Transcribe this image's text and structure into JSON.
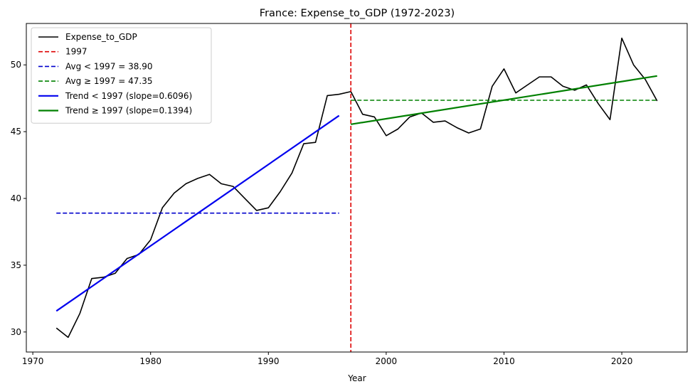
{
  "chart_data": {
    "type": "line",
    "title": "France: Expense_to_GDP (1972-2023)",
    "xlabel": "Year",
    "ylabel": "",
    "xlim": [
      1969.45,
      2025.55
    ],
    "ylim": [
      28.5,
      53.1
    ],
    "x_ticks": [
      1970,
      1980,
      1990,
      2000,
      2010,
      2020
    ],
    "y_ticks": [
      30,
      35,
      40,
      45,
      50
    ],
    "grid": false,
    "legend_position": "top-left",
    "series": [
      {
        "name": "Expense_to_GDP",
        "color": "#000000",
        "style": "solid",
        "x": [
          1972,
          1973,
          1974,
          1975,
          1976,
          1977,
          1978,
          1979,
          1980,
          1981,
          1982,
          1983,
          1984,
          1985,
          1986,
          1987,
          1988,
          1989,
          1990,
          1991,
          1992,
          1993,
          1994,
          1995,
          1996,
          1997,
          1998,
          1999,
          2000,
          2001,
          2002,
          2003,
          2004,
          2005,
          2006,
          2007,
          2008,
          2009,
          2010,
          2011,
          2012,
          2013,
          2014,
          2015,
          2016,
          2017,
          2018,
          2019,
          2020,
          2021,
          2022,
          2023
        ],
        "y": [
          30.3,
          29.6,
          31.4,
          34.0,
          34.1,
          34.4,
          35.5,
          35.8,
          36.9,
          39.3,
          40.4,
          41.1,
          41.5,
          41.8,
          41.1,
          40.9,
          40.0,
          39.1,
          39.3,
          40.5,
          41.9,
          44.1,
          44.2,
          47.7,
          47.8,
          48.0,
          46.3,
          46.1,
          44.7,
          45.2,
          46.1,
          46.4,
          45.7,
          45.8,
          45.3,
          44.9,
          45.2,
          48.4,
          49.7,
          47.9,
          48.5,
          49.1,
          49.1,
          48.4,
          48.1,
          48.5,
          47.1,
          45.9,
          52.0,
          50.0,
          48.9,
          47.3
        ]
      },
      {
        "name": "1997",
        "color": "#dd0000",
        "style": "dashed",
        "kind": "vline",
        "x_value": 1997
      },
      {
        "name": "Avg < 1997 = 38.90",
        "color": "#0000cc",
        "style": "dashed",
        "x": [
          1972,
          1996
        ],
        "y": [
          38.9,
          38.9
        ]
      },
      {
        "name": "Avg ≥ 1997 = 47.35",
        "color": "#008000",
        "style": "dashed",
        "x": [
          1997,
          2023
        ],
        "y": [
          47.35,
          47.35
        ]
      },
      {
        "name": "Trend < 1997 (slope=0.6096)",
        "color": "#0000ee",
        "style": "solid",
        "x": [
          1972,
          1996
        ],
        "y": [
          31.57,
          46.2
        ]
      },
      {
        "name": "Trend ≥ 1997 (slope=0.1394)",
        "color": "#008000",
        "style": "solid",
        "x": [
          1997,
          2023
        ],
        "y": [
          45.55,
          49.17
        ]
      }
    ]
  }
}
